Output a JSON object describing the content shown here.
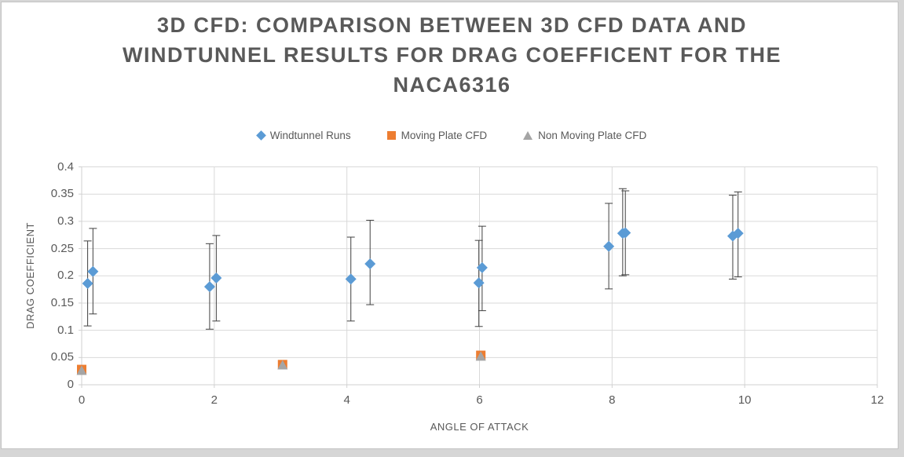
{
  "title": {
    "full": "3D CFD: COMPARISON BETWEEN 3D CFD DATA AND WINDTUNNEL RESULTS FOR DRAG COEFFICENT FOR THE NACA6316",
    "lines": [
      "3D CFD: COMPARISON BETWEEN 3D CFD DATA AND",
      "WINDTUNNEL RESULTS FOR DRAG COEFFICENT FOR THE",
      "NACA6316"
    ],
    "color": "#595959"
  },
  "colors": {
    "frame_background": "#d6d6d6",
    "chart_background": "#ffffff",
    "gridline": "#d9d9d9",
    "axis_line": "#d0d0d0",
    "error_bar": "#404040",
    "text": "#595959"
  },
  "chart_data": {
    "type": "scatter",
    "title": "3D CFD: COMPARISON BETWEEN 3D CFD DATA AND WINDTUNNEL RESULTS FOR DRAG COEFFICENT FOR THE NACA6316",
    "xlabel": "ANGLE OF ATTACK",
    "ylabel": "DRAG COEFFICIENT",
    "xlim": [
      0,
      12
    ],
    "ylim": [
      0,
      0.4
    ],
    "x_ticks": [
      0,
      2,
      4,
      6,
      8,
      10,
      12
    ],
    "x_tick_labels": [
      "0",
      "2",
      "4",
      "6",
      "8",
      "10",
      "12"
    ],
    "y_ticks": [
      0,
      0.05,
      0.1,
      0.15,
      0.2,
      0.25,
      0.3,
      0.35,
      0.4
    ],
    "y_tick_labels": [
      "0",
      "0.05",
      "0.1",
      "0.15",
      "0.2",
      "0.25",
      "0.3",
      "0.35",
      "0.4"
    ],
    "grid": true,
    "legend_position": "top-center",
    "series": [
      {
        "name": "Windtunnel Runs",
        "marker": "diamond",
        "color": "#5b9bd5",
        "has_error_bars": true,
        "points": [
          {
            "x": 0.09,
            "y": 0.186,
            "lo": 0.108,
            "hi": 0.264
          },
          {
            "x": 0.17,
            "y": 0.208,
            "lo": 0.13,
            "hi": 0.287
          },
          {
            "x": 1.93,
            "y": 0.18,
            "lo": 0.102,
            "hi": 0.259
          },
          {
            "x": 2.03,
            "y": 0.196,
            "lo": 0.117,
            "hi": 0.274
          },
          {
            "x": 4.06,
            "y": 0.194,
            "lo": 0.117,
            "hi": 0.271
          },
          {
            "x": 4.35,
            "y": 0.222,
            "lo": 0.147,
            "hi": 0.302
          },
          {
            "x": 5.99,
            "y": 0.187,
            "lo": 0.107,
            "hi": 0.265
          },
          {
            "x": 6.04,
            "y": 0.215,
            "lo": 0.136,
            "hi": 0.291
          },
          {
            "x": 7.95,
            "y": 0.254,
            "lo": 0.176,
            "hi": 0.333
          },
          {
            "x": 8.16,
            "y": 0.278,
            "lo": 0.2,
            "hi": 0.36
          },
          {
            "x": 8.2,
            "y": 0.279,
            "lo": 0.202,
            "hi": 0.356
          },
          {
            "x": 9.82,
            "y": 0.273,
            "lo": 0.194,
            "hi": 0.348
          },
          {
            "x": 9.9,
            "y": 0.278,
            "lo": 0.198,
            "hi": 0.354
          }
        ]
      },
      {
        "name": "Moving Plate CFD",
        "marker": "square",
        "color": "#ed7d31",
        "has_error_bars": false,
        "points": [
          {
            "x": 0.0,
            "y": 0.028
          },
          {
            "x": 3.03,
            "y": 0.037
          },
          {
            "x": 6.02,
            "y": 0.054
          }
        ]
      },
      {
        "name": "Non Moving Plate CFD",
        "marker": "triangle",
        "color": "#a5a5a5",
        "has_error_bars": false,
        "points": [
          {
            "x": 0.0,
            "y": 0.026
          },
          {
            "x": 3.03,
            "y": 0.036
          },
          {
            "x": 6.02,
            "y": 0.052
          }
        ]
      }
    ]
  }
}
